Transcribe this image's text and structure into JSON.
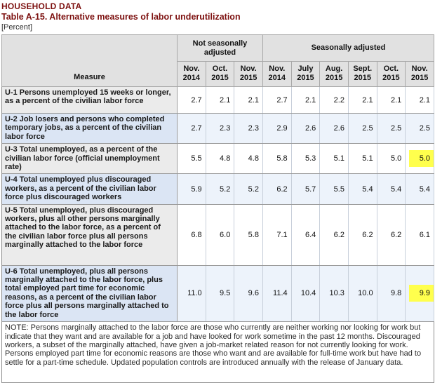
{
  "header": {
    "kicker": "HOUSEHOLD DATA",
    "title": "Table A-15. Alternative measures of labor underutilization",
    "unit": "[Percent]"
  },
  "colors": {
    "title_accent": "#7d1110",
    "highlight_yellow": "#ffff4d",
    "alt_row_measure": "#dbe5f4",
    "alt_row_cells": "#edf3fb",
    "header_gray": "#e1e1e1",
    "measure_gray": "#ebebeb"
  },
  "table": {
    "measure_label": "Measure",
    "groups": [
      {
        "label": "Not seasonally adjusted",
        "span": 3
      },
      {
        "label": "Seasonally adjusted",
        "span": 6
      }
    ],
    "month_columns": [
      "Nov. 2014",
      "Oct. 2015",
      "Nov. 2015",
      "Nov. 2014",
      "July 2015",
      "Aug. 2015",
      "Sept. 2015",
      "Oct. 2015",
      "Nov. 2015"
    ],
    "rows": [
      {
        "measure": "U-1 Persons unemployed 15 weeks or longer, as a percent of the civilian labor force",
        "values": [
          "2.7",
          "2.1",
          "2.1",
          "2.7",
          "2.1",
          "2.2",
          "2.1",
          "2.1",
          "2.1"
        ]
      },
      {
        "measure": "U-2 Job losers and persons who completed temporary jobs, as a percent of the civilian labor force",
        "values": [
          "2.7",
          "2.3",
          "2.3",
          "2.9",
          "2.6",
          "2.6",
          "2.5",
          "2.5",
          "2.5"
        ]
      },
      {
        "measure": "U-3 Total unemployed, as a percent of the civilian labor force (official unemployment rate)",
        "values": [
          "5.5",
          "4.8",
          "4.8",
          "5.8",
          "5.3",
          "5.1",
          "5.1",
          "5.0",
          "5.0"
        ],
        "highlight_last": true
      },
      {
        "measure": "U-4 Total unemployed plus discouraged workers, as a percent of the civilian labor force plus discouraged workers",
        "values": [
          "5.9",
          "5.2",
          "5.2",
          "6.2",
          "5.7",
          "5.5",
          "5.4",
          "5.4",
          "5.4"
        ]
      },
      {
        "measure": "U-5 Total unemployed, plus discouraged workers, plus all other persons marginally attached to the labor force, as a percent of the civilian labor force plus all persons marginally attached to the labor force",
        "values": [
          "6.8",
          "6.0",
          "5.8",
          "7.1",
          "6.4",
          "6.2",
          "6.2",
          "6.2",
          "6.1"
        ]
      },
      {
        "measure": "U-6 Total unemployed, plus all persons marginally attached to the labor force, plus total employed part time for economic reasons, as a percent of the civilian labor force plus all persons marginally attached to the labor force",
        "values": [
          "11.0",
          "9.5",
          "9.6",
          "11.4",
          "10.4",
          "10.3",
          "10.0",
          "9.8",
          "9.9"
        ],
        "highlight_last": true
      }
    ],
    "note": "NOTE: Persons marginally attached to the labor force are those who currently are neither working nor looking for work but indicate that they want and are available for a job and have looked for work sometime in the past 12 months. Discouraged workers, a subset of the marginally attached, have given a job-market related reason for not currently looking for work. Persons employed part time for economic reasons are those who want and are available for full-time work but have had to settle for a part-time schedule. Updated population controls are introduced annually with the release of January data."
  }
}
